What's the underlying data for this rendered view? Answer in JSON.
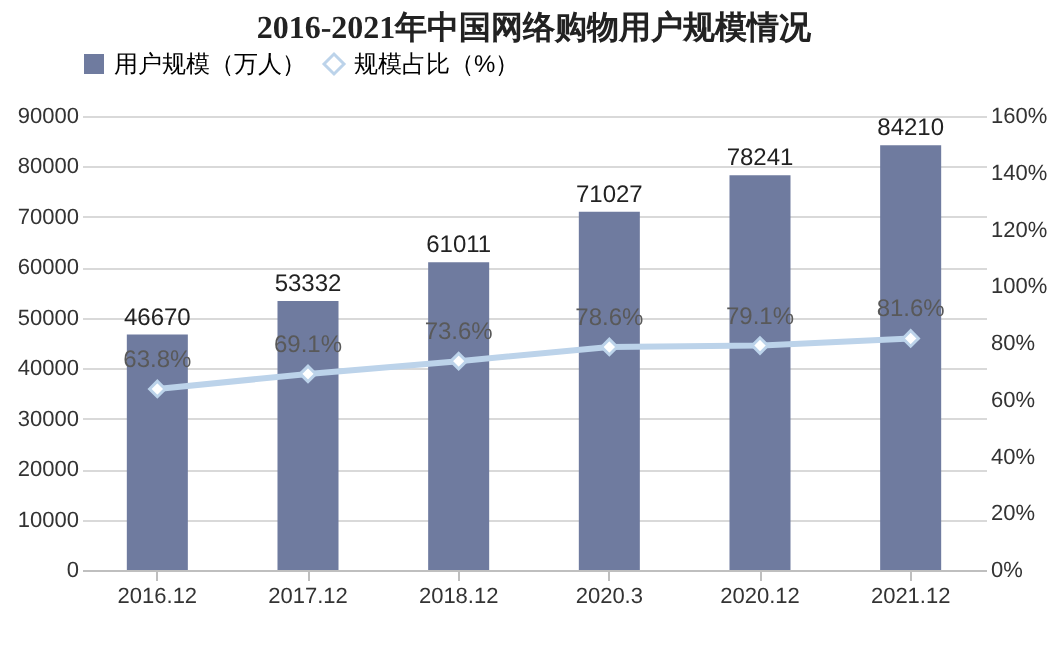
{
  "chart_data": {
    "type": "bar",
    "title": "2016-2021年中国网络购物用户规模情况",
    "categories": [
      "2016.12",
      "2017.12",
      "2018.12",
      "2020.3",
      "2020.12",
      "2021.12"
    ],
    "series": [
      {
        "name": "用户规模（万人）",
        "color": "#6f7b9f",
        "values": [
          46670,
          53332,
          61011,
          71027,
          78241,
          84210
        ],
        "value_labels": [
          "46670",
          "53332",
          "61011",
          "71027",
          "78241",
          "84210"
        ]
      },
      {
        "name": "规模占比（%）",
        "type": "line",
        "axis": "y2",
        "color": "#bcd3ea",
        "values": [
          63.8,
          69.1,
          73.6,
          78.6,
          79.1,
          81.6
        ],
        "value_labels": [
          "63.8%",
          "69.1%",
          "73.6%",
          "78.6%",
          "79.1%",
          "81.6%"
        ]
      }
    ],
    "ylim": [
      0,
      90000
    ],
    "yticks": [
      0,
      10000,
      20000,
      30000,
      40000,
      50000,
      60000,
      70000,
      80000,
      90000
    ],
    "y2lim": [
      0,
      160
    ],
    "y2ticks": [
      {
        "value": 0,
        "label": "0%"
      },
      {
        "value": 20,
        "label": "20%"
      },
      {
        "value": 40,
        "label": "40%"
      },
      {
        "value": 60,
        "label": "60%"
      },
      {
        "value": 80,
        "label": "80%"
      },
      {
        "value": 100,
        "label": "100%"
      },
      {
        "value": 120,
        "label": "120%"
      },
      {
        "value": 140,
        "label": "140%"
      },
      {
        "value": 160,
        "label": "160%"
      }
    ],
    "grid": "y",
    "legend": "top",
    "marker": "diamond",
    "line_style": "solid"
  }
}
